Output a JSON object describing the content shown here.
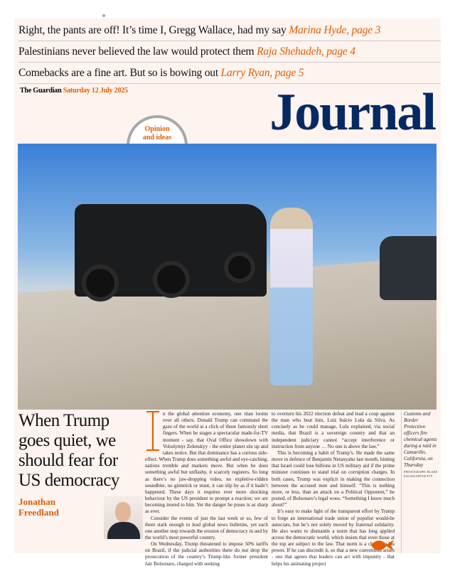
{
  "teasers": [
    {
      "text": "Right, the pants are off! It’s time I, Gregg Wallace, had my say",
      "byline": "Marina Hyde, page 3"
    },
    {
      "text": "Palestinians never believed the law would protect them",
      "byline": "Raja Shehadeh, page 4"
    },
    {
      "text": "Comebacks are a fine art. But so is bowing out",
      "byline": "Larry Ryan, page 5"
    }
  ],
  "masthead": {
    "paper": "The Guardian",
    "date": "Saturday 12 July 2025",
    "section": "Journal",
    "badge_line1": "Opinion",
    "badge_line2": "and ideas"
  },
  "article": {
    "headline": "When Trump goes quiet, we should fear for US democracy",
    "author_first": "Jonathan",
    "author_last": "Freedland",
    "paragraphs": [
      "n the global attention economy, one titan looms over all others. Donald Trump can command the gaze of the world at a click of those famously short fingers. When he stages a spectacular made-for-TV moment - say, that Oval Office showdown with Volodymyr Zelenskyy - the entire planet sits up and takes notice. But that dominance has a curious side-effect. When Trump does something awful and eye-catching, nations tremble and markets move. But when he does something awful but unflashy, it scarcely registers. So long as there’s no jaw-dropping video, no expletive-ridden soundbite, no gimmick or stunt, it can slip by as if it hadn’t happened. These days it requires ever more shocking behaviour by the US president to prompt a reaction; we are becoming inured to him. Yet the danger he poses is as sharp as ever.",
      "Consider the events of just the last week or so, few of them stark enough to lead global news bulletins, yet each one another step towards the erosion of democracy in and by the world’s most powerful country.",
      "On Wednesday, Trump threatened to impose 50% tariffs on Brazil, if the judicial authorities there do not drop the prosecution of the country’s Trump-like former president Jair Bolsonaro, charged with seeking",
      "to overturn his 2022 election defeat and lead a coup against the man who beat him, Luiz Inácio Lula da Silva. As concisely as he could manage, Lula explained, via social media, that Brazil is a sovereign country and that an independent judiciary cannot “accept interference or instruction from anyone … No one is above the law.”",
      "This is becoming a habit of Trump’s. He made the same move in defence of Benjamin Netanyahu last month, hinting that Israel could lose billions in US military aid if the prime minister continues to stand trial on corruption charges. In both cases, Trump was explicit in making the connection between the accused men and himself. “This is nothing more, or less, than an attack on a Political Opponent,” he posted, of Bolsonaro’s legal woes. “Something I know much about!”",
      "It’s easy to make light of the transparent effort by Trump to forge an international trade union of populist would-be autocrats, but he’s not solely moved by fraternal solidarity. He also wants to dismantle a norm that has long applied across the democratic world, which insists that even those at the top are subject to the law. That norm is a check on his power. If he can discredit it, so that a new convention arises - one that agrees that leaders can act with impunity - that helps his animating project"
    ],
    "caption": "Customs and Border Protection officers fire chemical agents during a raid in Camarillo, California, on Thursday",
    "credit": "PHOTOGRAPH: BLAKE FAGAN/AFP/GETTY"
  },
  "colors": {
    "accent": "#e05e00",
    "masthead": "#052962",
    "page": "#fdf3ef"
  }
}
